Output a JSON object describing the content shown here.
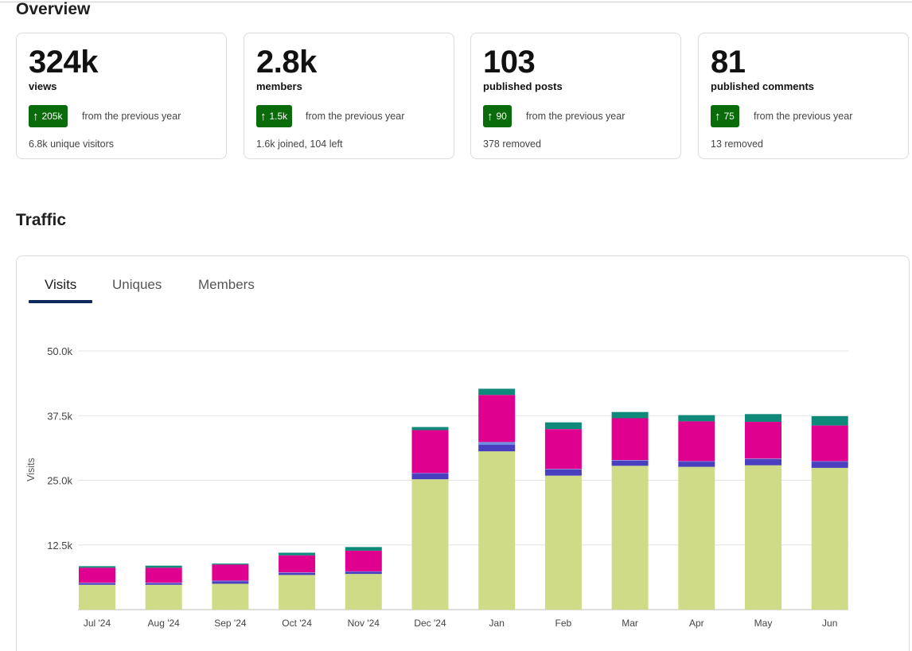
{
  "overview": {
    "title": "Overview",
    "cards": [
      {
        "value": "324k",
        "label": "views",
        "delta": "205k",
        "from": "from the previous year",
        "footnote": "6.8k unique visitors"
      },
      {
        "value": "2.8k",
        "label": "members",
        "delta": "1.5k",
        "from": "from the previous year",
        "footnote": "1.6k joined, 104 left"
      },
      {
        "value": "103",
        "label": "published posts",
        "delta": "90",
        "from": "from the previous year",
        "footnote": "378 removed"
      },
      {
        "value": "81",
        "label": "published comments",
        "delta": "75",
        "from": "from the previous year",
        "footnote": "13 removed"
      }
    ]
  },
  "traffic": {
    "title": "Traffic",
    "tabs": [
      {
        "label": "Visits",
        "active": true
      },
      {
        "label": "Uniques",
        "active": false
      },
      {
        "label": "Members",
        "active": false
      }
    ]
  },
  "colors": {
    "up_badge": "#0a6b0a",
    "tab_underline": "#0f2a5a",
    "series": [
      "#cfdb86",
      "#4a3fbf",
      "#6a8ee0",
      "#e0008f",
      "#0f8a7a"
    ]
  },
  "chart_data": {
    "type": "bar",
    "stacked": true,
    "ylabel": "Visits",
    "ylim": [
      0,
      50000
    ],
    "yticks": [
      "12.5k",
      "25.0k",
      "37.5k",
      "50.0k"
    ],
    "ytick_values": [
      12500,
      25000,
      37500,
      50000
    ],
    "grid": true,
    "categories": [
      "Jul '24",
      "Aug '24",
      "Sep '24",
      "Oct '24",
      "Nov '24",
      "Dec '24",
      "Jan",
      "Feb",
      "Mar",
      "Apr",
      "May",
      "Jun"
    ],
    "series": [
      {
        "values": [
          4800,
          4800,
          5000,
          6700,
          6900,
          25200,
          30600,
          25900,
          27800,
          27600,
          27900,
          27400
        ]
      },
      {
        "values": [
          300,
          300,
          500,
          400,
          400,
          1100,
          1300,
          1200,
          1000,
          1000,
          1200,
          1200
        ]
      },
      {
        "values": [
          100,
          100,
          100,
          100,
          100,
          100,
          500,
          100,
          100,
          100,
          100,
          100
        ]
      },
      {
        "values": [
          2900,
          2900,
          3100,
          3300,
          4000,
          8300,
          9100,
          7700,
          8100,
          7700,
          7100,
          6900
        ]
      },
      {
        "values": [
          300,
          400,
          200,
          500,
          700,
          600,
          1200,
          1300,
          1200,
          1200,
          1500,
          1800
        ]
      }
    ]
  }
}
